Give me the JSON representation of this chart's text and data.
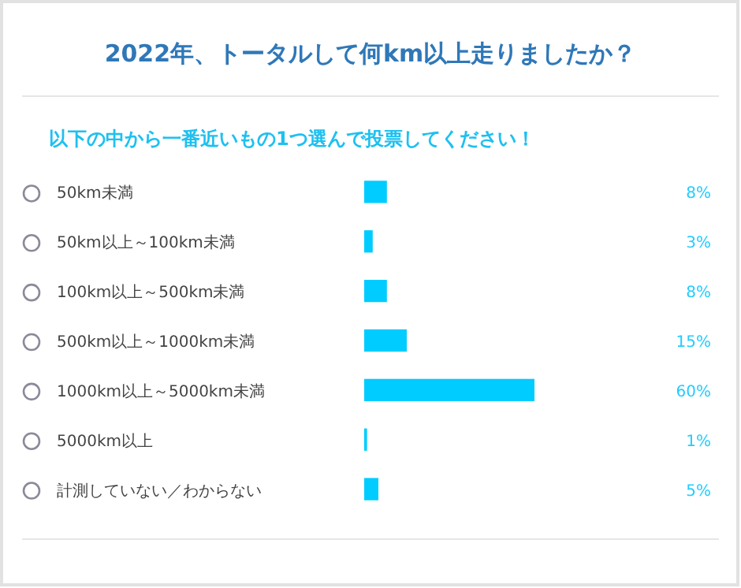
{
  "chart_data": {
    "type": "bar",
    "orientation": "horizontal",
    "title": "2022年、トータルして何km以上走りましたか？",
    "subtitle": "以下の中から一番近いもの1つ選んで投票してください！",
    "categories": [
      "50km未満",
      "50km以上～100km未満",
      "100km以上～500km未満",
      "500km以上～1000km未満",
      "1000km以上～5000km未満",
      "5000km以上",
      "計測していない／わからない"
    ],
    "values": [
      8,
      3,
      8,
      15,
      60,
      1,
      5
    ],
    "value_labels": [
      "8%",
      "3%",
      "8%",
      "15%",
      "60%",
      "1%",
      "5%"
    ],
    "color": "#00ccff"
  }
}
